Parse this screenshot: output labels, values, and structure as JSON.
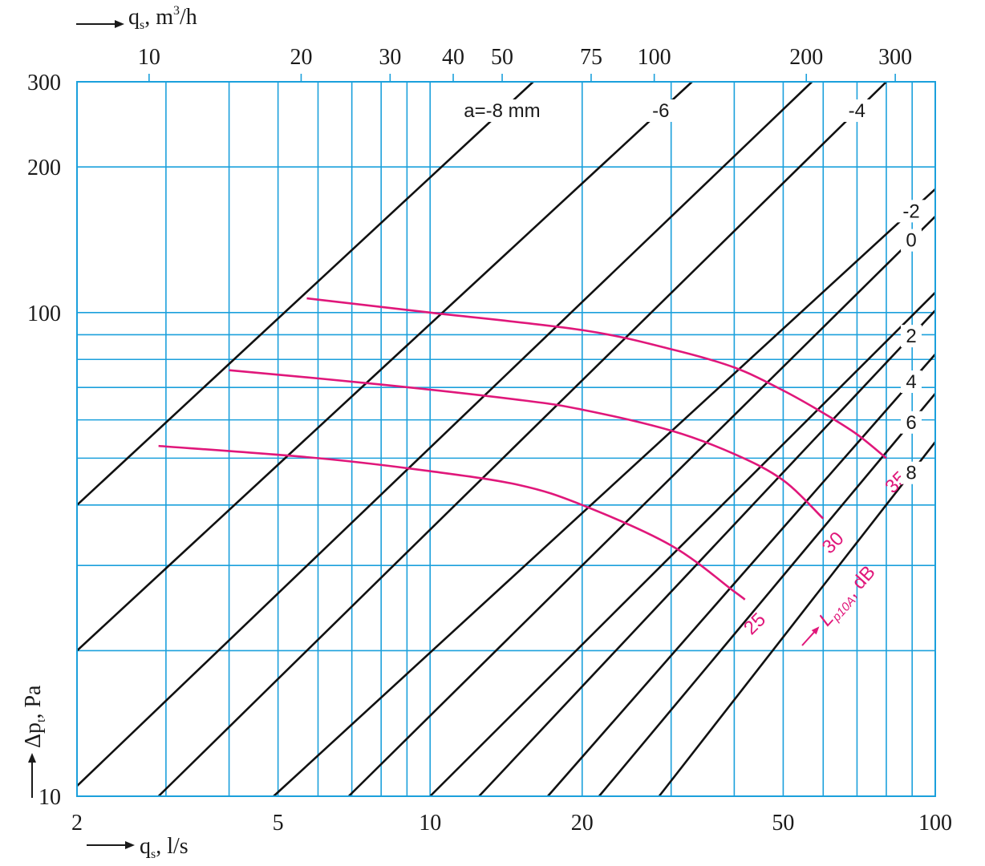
{
  "colors": {
    "grid": "#1ba0dc",
    "lines": "#111111",
    "curves": "#e0177a",
    "text": "#1a1a1a"
  },
  "axes": {
    "x_bottom_label": "q",
    "x_bottom_sub": "s",
    "x_bottom_unit": ", l/s",
    "x_top_label": "q",
    "x_top_sub": "s",
    "x_top_unit": ", m",
    "x_top_sup": "3",
    "x_top_unit2": "/h",
    "y_label": "Δp",
    "y_sub": "t",
    "y_unit": ", Pa"
  },
  "chart_data": {
    "type": "line",
    "xscale": "log",
    "yscale": "log",
    "xlim": [
      2,
      100
    ],
    "ylim": [
      10,
      300
    ],
    "grid": true,
    "x_ticks": [
      2,
      5,
      10,
      20,
      50,
      100
    ],
    "x_tick_labels": [
      "2",
      "5",
      "10",
      "20",
      "50",
      "100"
    ],
    "x_grid": [
      2,
      3,
      4,
      5,
      6,
      7,
      8,
      9,
      10,
      20,
      30,
      40,
      50,
      60,
      70,
      80,
      90,
      100
    ],
    "y_ticks": [
      10,
      100,
      200,
      300
    ],
    "y_tick_labels": [
      "10",
      "100",
      "200",
      "300"
    ],
    "y_grid": [
      10,
      20,
      30,
      40,
      50,
      60,
      70,
      80,
      90,
      100,
      200,
      300
    ],
    "top_ticks_m3h": [
      10,
      20,
      30,
      40,
      50,
      75,
      100,
      200,
      300
    ],
    "top_tick_labels": [
      "10",
      "20",
      "30",
      "40",
      "50",
      "75",
      "100",
      "200",
      "300"
    ],
    "series": [
      {
        "label": "a=-8 mm",
        "x": [
          2,
          16
        ],
        "y": [
          40,
          300
        ]
      },
      {
        "label": "-6",
        "x": [
          2,
          33
        ],
        "y": [
          20,
          300
        ]
      },
      {
        "label": "",
        "x": [
          2,
          57
        ],
        "y": [
          10.5,
          300
        ]
      },
      {
        "label": "-4",
        "x": [
          2.9,
          80
        ],
        "y": [
          10,
          300
        ]
      },
      {
        "label": "-2",
        "x": [
          4.9,
          100
        ],
        "y": [
          10,
          180
        ]
      },
      {
        "label": "0",
        "x": [
          6.9,
          100
        ],
        "y": [
          10,
          158
        ]
      },
      {
        "label": "",
        "x": [
          10,
          100
        ],
        "y": [
          10,
          110
        ]
      },
      {
        "label": "2",
        "x": [
          12.5,
          100
        ],
        "y": [
          10,
          101
        ]
      },
      {
        "label": "4",
        "x": [
          17.1,
          100
        ],
        "y": [
          10,
          82
        ]
      },
      {
        "label": "6",
        "x": [
          21.6,
          100
        ],
        "y": [
          10,
          68
        ]
      },
      {
        "label": "8",
        "x": [
          28.4,
          100
        ],
        "y": [
          10,
          54
        ]
      }
    ],
    "curves": [
      {
        "label": "35",
        "x": [
          5.7,
          10,
          20,
          30,
          40,
          50,
          60,
          70,
          80
        ],
        "y": [
          107,
          100,
          92,
          84,
          77,
          69,
          62,
          56,
          50
        ]
      },
      {
        "label": "30",
        "x": [
          4,
          8,
          15,
          20,
          30,
          40,
          50,
          60
        ],
        "y": [
          76,
          71,
          66,
          63,
          57,
          51,
          45,
          37.5
        ]
      },
      {
        "label": "25",
        "x": [
          2.9,
          6,
          10,
          15,
          20,
          30,
          40,
          42
        ],
        "y": [
          53,
          50,
          47,
          44,
          40,
          33,
          26.5,
          25.5
        ]
      }
    ],
    "curve_axis_label": "L",
    "curve_axis_sub": "p10A",
    "curve_axis_unit": ", dB"
  }
}
